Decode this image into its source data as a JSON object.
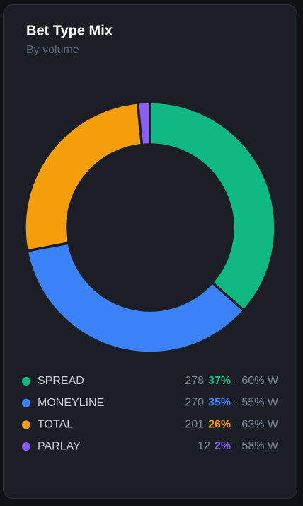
{
  "chart_data": {
    "type": "pie",
    "title": "Bet Type Mix",
    "subtitle": "By volume",
    "categories": [
      "SPREAD",
      "MONEYLINE",
      "TOTAL",
      "PARLAY"
    ],
    "values": [
      278,
      270,
      201,
      12
    ],
    "value_labels": [
      "37%",
      "35%",
      "26%",
      "2%"
    ],
    "win_labels": [
      "60% W",
      "55% W",
      "63% W",
      "58% W"
    ],
    "separator": "·",
    "colors": [
      "#10b981",
      "#3b82f6",
      "#f59e0b",
      "#8b5cf6"
    ],
    "donut": true
  }
}
